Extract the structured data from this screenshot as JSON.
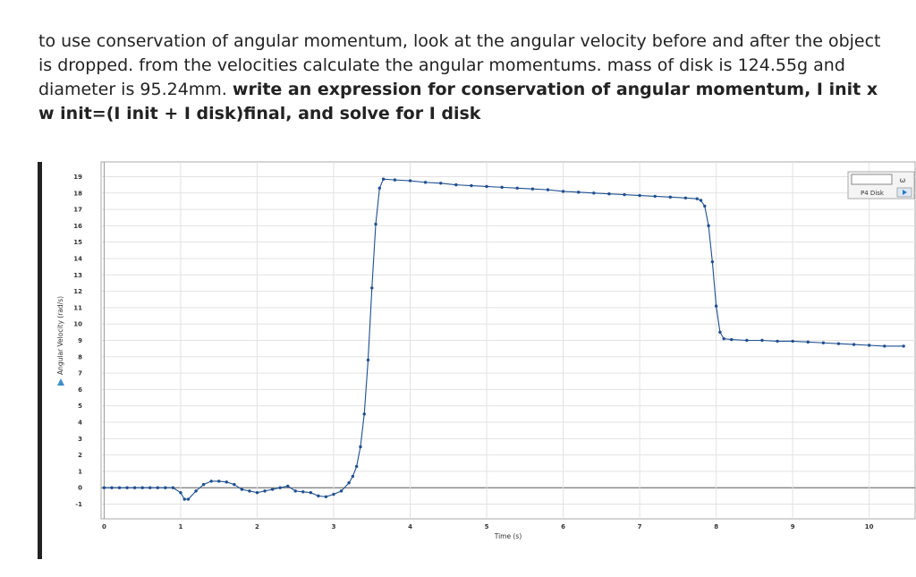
{
  "question": {
    "text_plain": "to use conservation of angular momentum, look at the angular velocity before and after the object is dropped. from the velocities calculate the angular momentums. mass of disk is 124.55g and diameter is 95.24mm.",
    "text_bold": "write an expression for conservation of angular momentum, I init x w init=(I init + I disk)final, and solve for I disk"
  },
  "chart_data": {
    "type": "line",
    "x_label": "Time (s)",
    "y_label": "Angular Velocity (rad/s)",
    "legend_symbol": "ω",
    "xlim": [
      -0.04,
      10.6
    ],
    "ylim": [
      -1.9,
      19.9
    ],
    "xticks": [
      0,
      1,
      2,
      3,
      4,
      5,
      6,
      7,
      8,
      9,
      10
    ],
    "yticks": [
      -1,
      0,
      1,
      2,
      3,
      4,
      5,
      6,
      7,
      8,
      9,
      10,
      11,
      12,
      13,
      14,
      15,
      16,
      17,
      18,
      19
    ],
    "grid": true,
    "legend": "upper right",
    "x": [
      0,
      0.1,
      0.2,
      0.3,
      0.4,
      0.5,
      0.6,
      0.7,
      0.8,
      0.9,
      1.0,
      1.05,
      1.1,
      1.2,
      1.3,
      1.4,
      1.5,
      1.6,
      1.7,
      1.8,
      1.9,
      2.0,
      2.1,
      2.2,
      2.3,
      2.4,
      2.5,
      2.6,
      2.7,
      2.8,
      2.9,
      3.0,
      3.1,
      3.2,
      3.25,
      3.3,
      3.35,
      3.4,
      3.45,
      3.5,
      3.55,
      3.6,
      3.65,
      3.8,
      4.0,
      4.2,
      4.4,
      4.6,
      4.8,
      5.0,
      5.2,
      5.4,
      5.6,
      5.8,
      6.0,
      6.2,
      6.4,
      6.6,
      6.8,
      7.0,
      7.2,
      7.4,
      7.6,
      7.75,
      7.8,
      7.85,
      7.9,
      7.95,
      8.0,
      8.05,
      8.1,
      8.2,
      8.4,
      8.6,
      8.8,
      9.0,
      9.2,
      9.4,
      9.6,
      9.8,
      10.0,
      10.2,
      10.45
    ],
    "series": [
      {
        "name": "P4 Disk",
        "color": "#1f4f8f",
        "values": [
          0,
          0,
          0,
          0,
          0,
          0,
          0,
          0,
          0,
          0,
          -0.3,
          -0.7,
          -0.7,
          -0.2,
          0.2,
          0.4,
          0.4,
          0.35,
          0.2,
          -0.1,
          -0.2,
          -0.3,
          -0.2,
          -0.1,
          0,
          0.1,
          -0.2,
          -0.25,
          -0.3,
          -0.5,
          -0.55,
          -0.4,
          -0.2,
          0.3,
          0.7,
          1.3,
          2.5,
          4.5,
          7.8,
          12.2,
          16.1,
          18.3,
          18.85,
          18.8,
          18.75,
          18.65,
          18.6,
          18.5,
          18.45,
          18.4,
          18.35,
          18.3,
          18.25,
          18.2,
          18.1,
          18.05,
          18.0,
          17.95,
          17.9,
          17.85,
          17.8,
          17.75,
          17.7,
          17.65,
          17.55,
          17.2,
          16.0,
          13.8,
          11.1,
          9.5,
          9.1,
          9.05,
          9.0,
          9.0,
          8.95,
          8.95,
          8.9,
          8.85,
          8.8,
          8.75,
          8.7,
          8.65,
          8.65
        ]
      }
    ]
  }
}
